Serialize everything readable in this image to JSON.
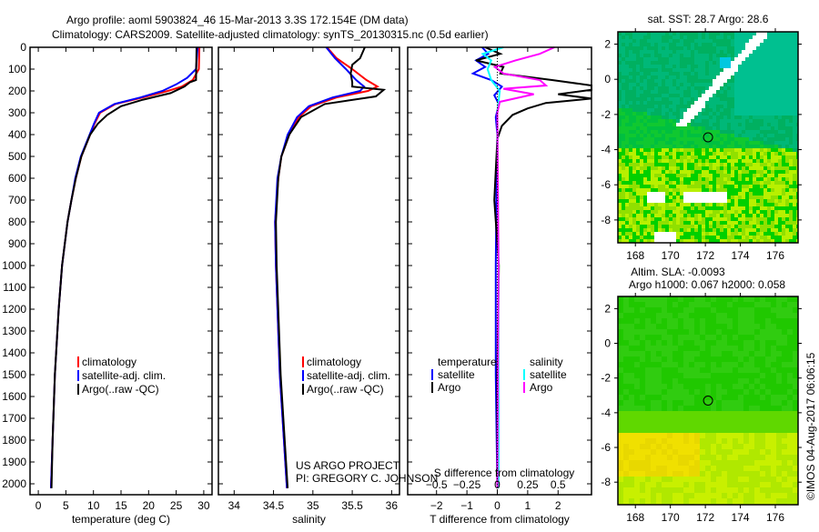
{
  "title": {
    "line1": "Argo profile: aoml 5903824_46 15-Mar-2013 3.3S 172.154E (DM data)",
    "line2": "Climatology: CARS2009. Satellite-adjusted climatology: synTS_20130315.nc (0.5d earlier)"
  },
  "colors": {
    "climatology": "#ff0000",
    "satellite": "#0000ff",
    "argo": "#000000",
    "s_satellite": "#00ffff",
    "s_argo": "#ff00ff"
  },
  "credit": {
    "project": "US ARGO PROJECT",
    "pi": "PI: GREGORY C. JOHNSON",
    "watermark": "©IMOS 04-Aug-2017 06:06:15"
  },
  "chart_data": [
    {
      "type": "line",
      "id": "temperature",
      "xlabel": "temperature (deg C)",
      "ylabel": "pressure",
      "xlim": [
        -1.5,
        31.5
      ],
      "ylim": [
        2050,
        0
      ],
      "xticks": [
        0,
        5,
        10,
        15,
        20,
        25,
        30
      ],
      "yticks": [
        0,
        100,
        200,
        300,
        400,
        500,
        600,
        700,
        800,
        900,
        1000,
        1100,
        1200,
        1300,
        1400,
        1500,
        1600,
        1700,
        1800,
        1900,
        2000
      ],
      "legend": [
        "climatology",
        "satellite-adj. clim.",
        "Argo(..raw -QC)"
      ],
      "series": [
        {
          "name": "climatology",
          "color": "#ff0000",
          "points": [
            [
              0,
              29.2
            ],
            [
              100,
              29.1
            ],
            [
              150,
              28
            ],
            [
              180,
              26
            ],
            [
              200,
              23.5
            ],
            [
              230,
              19
            ],
            [
              260,
              14
            ],
            [
              300,
              11.2
            ],
            [
              350,
              10.2
            ],
            [
              400,
              9.4
            ],
            [
              500,
              7.8
            ],
            [
              600,
              6.8
            ],
            [
              700,
              6
            ],
            [
              800,
              5.3
            ],
            [
              1000,
              4.3
            ],
            [
              1200,
              3.7
            ],
            [
              1500,
              3
            ],
            [
              1800,
              2.6
            ],
            [
              2020,
              2.3
            ]
          ]
        },
        {
          "name": "satellite",
          "color": "#0000ff",
          "points": [
            [
              0,
              28.9
            ],
            [
              100,
              28.6
            ],
            [
              140,
              27
            ],
            [
              170,
              25
            ],
            [
              200,
              22.5
            ],
            [
              230,
              18.5
            ],
            [
              260,
              13.8
            ],
            [
              300,
              11
            ],
            [
              350,
              10.1
            ],
            [
              400,
              9.3
            ],
            [
              500,
              7.7
            ],
            [
              600,
              6.7
            ],
            [
              700,
              6
            ],
            [
              800,
              5.3
            ],
            [
              1000,
              4.3
            ],
            [
              1200,
              3.7
            ],
            [
              1500,
              3
            ],
            [
              1800,
              2.6
            ],
            [
              2020,
              2.3
            ]
          ]
        },
        {
          "name": "Argo",
          "color": "#000000",
          "points": [
            [
              0,
              28.7
            ],
            [
              150,
              28.6
            ],
            [
              160,
              27.5
            ],
            [
              180,
              26.5
            ],
            [
              210,
              24
            ],
            [
              240,
              19
            ],
            [
              270,
              15
            ],
            [
              310,
              12.5
            ],
            [
              350,
              10.8
            ],
            [
              400,
              9.4
            ],
            [
              500,
              7.8
            ],
            [
              600,
              6.8
            ],
            [
              700,
              6
            ],
            [
              800,
              5.3
            ],
            [
              1000,
              4.3
            ],
            [
              1200,
              3.7
            ],
            [
              1500,
              3
            ],
            [
              1800,
              2.6
            ],
            [
              2020,
              2.4
            ]
          ]
        }
      ]
    },
    {
      "type": "line",
      "id": "salinity",
      "xlabel": "salinity",
      "ylabel": "pressure",
      "xlim": [
        33.8,
        36.1
      ],
      "ylim": [
        2050,
        0
      ],
      "xticks": [
        34,
        34.5,
        35,
        35.5,
        36
      ],
      "legend": [
        "climatology",
        "satellite-adj. clim.",
        "Argo(..raw -QC)"
      ],
      "series": [
        {
          "name": "climatology",
          "color": "#ff0000",
          "points": [
            [
              0,
              35.18
            ],
            [
              50,
              35.3
            ],
            [
              100,
              35.5
            ],
            [
              150,
              35.68
            ],
            [
              180,
              35.82
            ],
            [
              200,
              35.7
            ],
            [
              230,
              35.3
            ],
            [
              270,
              34.98
            ],
            [
              320,
              34.82
            ],
            [
              400,
              34.7
            ],
            [
              500,
              34.6
            ],
            [
              600,
              34.56
            ],
            [
              800,
              34.52
            ],
            [
              1000,
              34.53
            ],
            [
              1500,
              34.58
            ],
            [
              2020,
              34.67
            ]
          ]
        },
        {
          "name": "satellite",
          "color": "#0000ff",
          "points": [
            [
              0,
              35.17
            ],
            [
              50,
              35.28
            ],
            [
              100,
              35.42
            ],
            [
              150,
              35.55
            ],
            [
              180,
              35.65
            ],
            [
              200,
              35.6
            ],
            [
              230,
              35.25
            ],
            [
              270,
              34.95
            ],
            [
              320,
              34.8
            ],
            [
              400,
              34.68
            ],
            [
              500,
              34.6
            ],
            [
              600,
              34.55
            ],
            [
              800,
              34.52
            ],
            [
              1000,
              34.53
            ],
            [
              1500,
              34.58
            ],
            [
              2020,
              34.67
            ]
          ]
        },
        {
          "name": "Argo",
          "color": "#000000",
          "points": [
            [
              0,
              35.66
            ],
            [
              50,
              35.6
            ],
            [
              80,
              35.5
            ],
            [
              120,
              35.48
            ],
            [
              160,
              35.5
            ],
            [
              180,
              35.5
            ],
            [
              195,
              35.9
            ],
            [
              225,
              35.8
            ],
            [
              260,
              35.15
            ],
            [
              320,
              34.85
            ],
            [
              400,
              34.7
            ],
            [
              500,
              34.6
            ],
            [
              600,
              34.56
            ],
            [
              800,
              34.53
            ],
            [
              1000,
              34.54
            ],
            [
              1500,
              34.59
            ],
            [
              2020,
              34.68
            ]
          ]
        }
      ]
    },
    {
      "type": "line",
      "id": "difference",
      "xlabel": "T difference from climatology",
      "x2label": "S difference from climatology",
      "ylim": [
        2050,
        0
      ],
      "xlim": [
        -2.95,
        3.1
      ],
      "xticks": [
        -2,
        -1,
        0,
        1,
        2
      ],
      "x2ticks": [
        "-0.5",
        "-0.25",
        "0",
        "0.25",
        "0.5"
      ],
      "legend": {
        "temperature": "temperature",
        "salinity": "salinity",
        "satellite": "satellite",
        "argo": "Argo"
      },
      "series": [
        {
          "name": "T satellite",
          "color": "#0000ff",
          "units": "T",
          "points": [
            [
              0,
              -0.5
            ],
            [
              30,
              -0.3
            ],
            [
              60,
              -0.7
            ],
            [
              90,
              -0.4
            ],
            [
              120,
              -0.8
            ],
            [
              150,
              -0.2
            ],
            [
              180,
              0.15
            ],
            [
              220,
              -0.1
            ],
            [
              260,
              0.05
            ],
            [
              320,
              -0.05
            ],
            [
              400,
              0
            ],
            [
              700,
              -0.03
            ],
            [
              1000,
              -0.05
            ],
            [
              1500,
              -0.05
            ],
            [
              2020,
              0
            ]
          ]
        },
        {
          "name": "T Argo",
          "color": "#000000",
          "units": "T",
          "points": [
            [
              0,
              -0.4
            ],
            [
              30,
              0.1
            ],
            [
              60,
              -0.7
            ],
            [
              90,
              0.2
            ],
            [
              120,
              0.1
            ],
            [
              150,
              1.8
            ],
            [
              175,
              3.1
            ],
            [
              195,
              3.1
            ],
            [
              215,
              2
            ],
            [
              235,
              3.1
            ],
            [
              255,
              1.6
            ],
            [
              280,
              1.0
            ],
            [
              310,
              0.5
            ],
            [
              360,
              0.15
            ],
            [
              420,
              0
            ],
            [
              700,
              -0.1
            ],
            [
              1000,
              0.05
            ],
            [
              1500,
              0
            ],
            [
              2020,
              0
            ]
          ]
        },
        {
          "name": "S satellite",
          "color": "#00ffff",
          "units": "S",
          "points": [
            [
              0,
              0.05
            ],
            [
              30,
              -0.12
            ],
            [
              60,
              -0.05
            ],
            [
              100,
              -0.08
            ],
            [
              150,
              -0.05
            ],
            [
              200,
              0.02
            ],
            [
              300,
              0
            ],
            [
              1000,
              0.01
            ],
            [
              2020,
              0.01
            ]
          ]
        },
        {
          "name": "S Argo",
          "color": "#ff00ff",
          "units": "S",
          "points": [
            [
              0,
              0.47
            ],
            [
              30,
              0.35
            ],
            [
              60,
              0.15
            ],
            [
              90,
              -0.02
            ],
            [
              120,
              0.05
            ],
            [
              150,
              0.35
            ],
            [
              175,
              0.4
            ],
            [
              190,
              0.05
            ],
            [
              215,
              0.3
            ],
            [
              250,
              0.02
            ],
            [
              300,
              0
            ],
            [
              1000,
              0.01
            ],
            [
              2020,
              0
            ]
          ]
        }
      ]
    },
    {
      "type": "heatmap",
      "id": "sst_map",
      "title": "sat. SST: 28.7 Argo: 28.6",
      "xlim": [
        167,
        177.3
      ],
      "ylim": [
        -9.3,
        2.7
      ],
      "xticks": [
        168,
        170,
        172,
        174,
        176
      ],
      "yticks": [
        2,
        0,
        -2,
        -4,
        -6,
        -8
      ],
      "marker": [
        172.154,
        -3.3
      ]
    },
    {
      "type": "heatmap",
      "id": "sla_map",
      "title": "Altim. SLA: -0.0093",
      "subtitle": "Argo h1000: 0.067 h2000: 0.058",
      "xlim": [
        167,
        177.3
      ],
      "ylim": [
        -9.3,
        2.7
      ],
      "xticks": [
        168,
        170,
        172,
        174,
        176
      ],
      "yticks": [
        2,
        0,
        -2,
        -4,
        -6,
        -8
      ],
      "marker": [
        172.154,
        -3.3
      ]
    }
  ]
}
